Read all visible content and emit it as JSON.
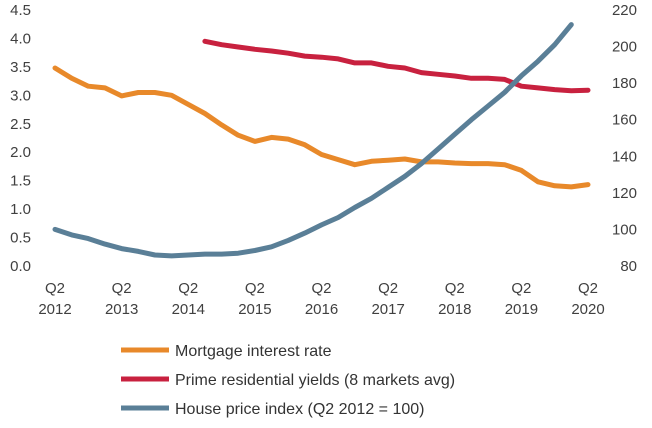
{
  "chart_data": {
    "type": "line",
    "title": "",
    "x_tick_labels": [
      {
        "top": "Q2",
        "bottom": "2012"
      },
      {
        "top": "Q2",
        "bottom": "2013"
      },
      {
        "top": "Q2",
        "bottom": "2014"
      },
      {
        "top": "Q2",
        "bottom": "2015"
      },
      {
        "top": "Q2",
        "bottom": "2016"
      },
      {
        "top": "Q2",
        "bottom": "2017"
      },
      {
        "top": "Q2",
        "bottom": "2018"
      },
      {
        "top": "Q2",
        "bottom": "2019"
      },
      {
        "top": "Q2",
        "bottom": "2020"
      }
    ],
    "x_range": [
      2012.0,
      2020.0
    ],
    "y_left": {
      "ticks": [
        "0.0",
        "0.5",
        "1.0",
        "1.5",
        "2.0",
        "2.5",
        "3.0",
        "3.5",
        "4.0",
        "4.5"
      ],
      "ylim": [
        0,
        4.5
      ]
    },
    "y_right": {
      "ticks": [
        "80",
        "100",
        "120",
        "140",
        "160",
        "180",
        "200",
        "220"
      ],
      "ylim": [
        80,
        220
      ]
    },
    "grid": false,
    "legend_position": "bottom",
    "series": [
      {
        "name": "Mortgage interest rate",
        "axis": "left",
        "color": "#E8892A",
        "x": [
          2012.0,
          2012.25,
          2012.5,
          2012.75,
          2013.0,
          2013.25,
          2013.5,
          2013.75,
          2014.0,
          2014.25,
          2014.5,
          2014.75,
          2015.0,
          2015.25,
          2015.5,
          2015.75,
          2016.0,
          2016.25,
          2016.5,
          2016.75,
          2017.0,
          2017.25,
          2017.5,
          2017.75,
          2018.0,
          2018.25,
          2018.5,
          2018.75,
          2019.0,
          2019.25,
          2019.5,
          2019.75,
          2020.0
        ],
        "values": [
          3.48,
          3.3,
          3.16,
          3.13,
          2.99,
          3.05,
          3.05,
          3.0,
          2.84,
          2.68,
          2.48,
          2.3,
          2.19,
          2.26,
          2.23,
          2.13,
          1.96,
          1.87,
          1.78,
          1.84,
          1.86,
          1.88,
          1.83,
          1.83,
          1.81,
          1.8,
          1.8,
          1.78,
          1.68,
          1.48,
          1.41,
          1.39,
          1.43
        ]
      },
      {
        "name": "Prime residential yields (8 markets avg)",
        "axis": "left",
        "color": "#C8213F",
        "x": [
          2014.25,
          2014.5,
          2014.75,
          2015.0,
          2015.25,
          2015.5,
          2015.75,
          2016.0,
          2016.25,
          2016.5,
          2016.75,
          2017.0,
          2017.25,
          2017.5,
          2017.75,
          2018.0,
          2018.25,
          2018.5,
          2018.75,
          2019.0,
          2019.25,
          2019.5,
          2019.75,
          2020.0
        ],
        "values": [
          3.95,
          3.89,
          3.85,
          3.81,
          3.78,
          3.74,
          3.69,
          3.67,
          3.64,
          3.57,
          3.57,
          3.51,
          3.48,
          3.4,
          3.37,
          3.34,
          3.3,
          3.3,
          3.28,
          3.16,
          3.13,
          3.1,
          3.08,
          3.09
        ]
      },
      {
        "name": "House price index (Q2 2012 = 100)",
        "axis": "right",
        "color": "#5A7F97",
        "x": [
          2012.0,
          2012.25,
          2012.5,
          2012.75,
          2013.0,
          2013.25,
          2013.5,
          2013.75,
          2014.0,
          2014.25,
          2014.5,
          2014.75,
          2015.0,
          2015.25,
          2015.5,
          2015.75,
          2016.0,
          2016.25,
          2016.5,
          2016.75,
          2017.0,
          2017.25,
          2017.5,
          2017.75,
          2018.0,
          2018.25,
          2018.5,
          2018.75,
          2019.0,
          2019.25,
          2019.5,
          2019.75
        ],
        "values": [
          100,
          97,
          95,
          92,
          89.5,
          88,
          86,
          85.5,
          86,
          86.5,
          86.5,
          87,
          88.5,
          90.5,
          94,
          98,
          102.5,
          106.5,
          112,
          117,
          123,
          129,
          136,
          144,
          152,
          160,
          167.5,
          175,
          184,
          192,
          201,
          212
        ]
      }
    ]
  }
}
